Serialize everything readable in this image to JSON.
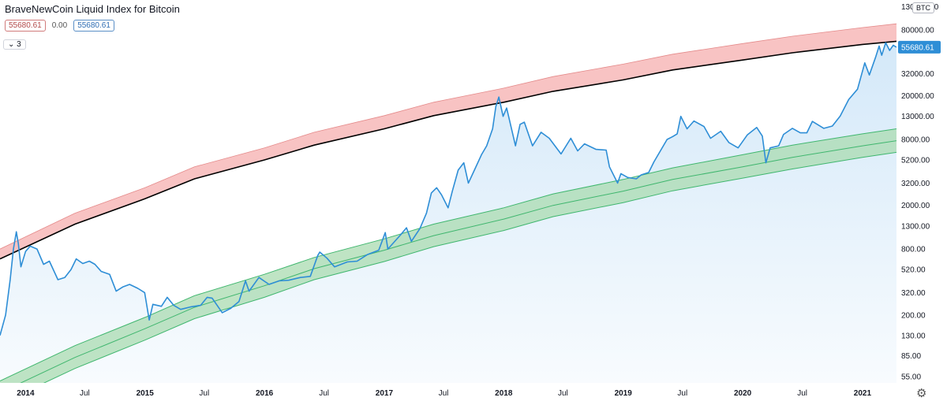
{
  "header": {
    "title": "BraveNewCoin Liquid Index for Bitcoin",
    "val_a": "55680.61",
    "val_b": "0.00",
    "val_c": "55680.61",
    "collapse_label": "3"
  },
  "currency_badge": "BTC",
  "last_price_label": "55680.61",
  "settings_icon": "gear-icon",
  "colors": {
    "price_line": "#2e8ed6",
    "price_fill_top": "#cfe6f8",
    "red_band": "#f7b9b9",
    "red_band_edge": "#e48a8a",
    "green_band": "#a9dbb0",
    "green_band_edge": "#3fb66e",
    "fair_line": "#000000"
  },
  "chart_data": {
    "type": "line",
    "title": "BraveNewCoin Liquid Index for Bitcoin",
    "y_scale": "log",
    "ylim": [
      48,
      150000
    ],
    "x_range": [
      "2013-10-15",
      "2021-04-15"
    ],
    "y_ticks": [
      130000,
      80000,
      52000,
      32000,
      20000,
      13000,
      8000,
      5200,
      3200,
      2000,
      1300,
      800,
      520,
      320,
      200,
      130,
      85,
      55
    ],
    "y_tick_labels": [
      "130000.00",
      "80000.00",
      "52000.00",
      "32000.00",
      "20000.00",
      "13000.00",
      "8000.00",
      "5200.00",
      "3200.00",
      "2000.00",
      "1300.00",
      "800.00",
      "520.00",
      "320.00",
      "200.00",
      "130.00",
      "85.00",
      "55.00"
    ],
    "x_ticks": [
      {
        "date": "2014-01-01",
        "label": "2014",
        "bold": true
      },
      {
        "date": "2014-07-01",
        "label": "Jul",
        "bold": false
      },
      {
        "date": "2015-01-01",
        "label": "2015",
        "bold": true
      },
      {
        "date": "2015-07-01",
        "label": "Jul",
        "bold": false
      },
      {
        "date": "2016-01-01",
        "label": "2016",
        "bold": true
      },
      {
        "date": "2016-07-01",
        "label": "Jul",
        "bold": false
      },
      {
        "date": "2017-01-01",
        "label": "2017",
        "bold": true
      },
      {
        "date": "2017-07-01",
        "label": "Jul",
        "bold": false
      },
      {
        "date": "2018-01-01",
        "label": "2018",
        "bold": true
      },
      {
        "date": "2018-07-01",
        "label": "Jul",
        "bold": false
      },
      {
        "date": "2019-01-01",
        "label": "2019",
        "bold": true
      },
      {
        "date": "2019-07-01",
        "label": "Jul",
        "bold": false
      },
      {
        "date": "2020-01-01",
        "label": "2020",
        "bold": true
      },
      {
        "date": "2020-07-01",
        "label": "Jul",
        "bold": false
      },
      {
        "date": "2021-01-01",
        "label": "2021",
        "bold": true
      }
    ],
    "bands": {
      "dates": [
        "2013-10-15",
        "2014-06-01",
        "2015-01-01",
        "2015-06-01",
        "2016-01-01",
        "2016-06-01",
        "2017-01-01",
        "2017-06-01",
        "2018-01-01",
        "2018-06-01",
        "2019-01-01",
        "2019-06-01",
        "2020-01-01",
        "2020-06-01",
        "2021-01-01",
        "2021-04-15"
      ],
      "red_upper": [
        800,
        1700,
        2900,
        4500,
        6700,
        9300,
        13200,
        17500,
        23500,
        30000,
        39000,
        48000,
        60000,
        70000,
        84000,
        91000
      ],
      "fair_value": [
        650,
        1350,
        2300,
        3500,
        5200,
        7100,
        10000,
        13200,
        17500,
        22000,
        28000,
        34500,
        42500,
        49500,
        59000,
        63000
      ],
      "green_upper": [
        50,
        105,
        190,
        300,
        470,
        670,
        990,
        1350,
        1900,
        2550,
        3450,
        4400,
        5800,
        7100,
        9000,
        10000
      ],
      "green_mid": [
        39,
        82,
        150,
        235,
        370,
        530,
        780,
        1060,
        1500,
        2000,
        2700,
        3450,
        4500,
        5500,
        7000,
        7800
      ],
      "green_lower": [
        31,
        65,
        118,
        185,
        290,
        420,
        615,
        840,
        1180,
        1580,
        2120,
        2720,
        3550,
        4300,
        5500,
        6100
      ]
    },
    "series": [
      {
        "name": "BTC",
        "points": [
          [
            "2013-10-15",
            130
          ],
          [
            "2013-11-01",
            200
          ],
          [
            "2013-11-15",
            420
          ],
          [
            "2013-11-25",
            800
          ],
          [
            "2013-12-04",
            1150
          ],
          [
            "2013-12-10",
            900
          ],
          [
            "2013-12-18",
            550
          ],
          [
            "2014-01-01",
            760
          ],
          [
            "2014-01-15",
            850
          ],
          [
            "2014-02-05",
            800
          ],
          [
            "2014-02-25",
            580
          ],
          [
            "2014-03-15",
            620
          ],
          [
            "2014-04-10",
            420
          ],
          [
            "2014-05-01",
            440
          ],
          [
            "2014-05-20",
            520
          ],
          [
            "2014-06-05",
            650
          ],
          [
            "2014-06-25",
            590
          ],
          [
            "2014-07-15",
            620
          ],
          [
            "2014-08-01",
            580
          ],
          [
            "2014-08-20",
            500
          ],
          [
            "2014-09-15",
            470
          ],
          [
            "2014-10-05",
            330
          ],
          [
            "2014-10-25",
            360
          ],
          [
            "2014-11-15",
            380
          ],
          [
            "2014-12-10",
            350
          ],
          [
            "2014-12-31",
            320
          ],
          [
            "2015-01-14",
            180
          ],
          [
            "2015-01-25",
            250
          ],
          [
            "2015-02-20",
            240
          ],
          [
            "2015-03-10",
            290
          ],
          [
            "2015-03-30",
            245
          ],
          [
            "2015-04-20",
            225
          ],
          [
            "2015-05-20",
            237
          ],
          [
            "2015-06-20",
            245
          ],
          [
            "2015-07-10",
            290
          ],
          [
            "2015-07-25",
            285
          ],
          [
            "2015-08-25",
            210
          ],
          [
            "2015-09-20",
            230
          ],
          [
            "2015-10-15",
            265
          ],
          [
            "2015-11-04",
            410
          ],
          [
            "2015-11-15",
            330
          ],
          [
            "2015-12-15",
            440
          ],
          [
            "2016-01-15",
            380
          ],
          [
            "2016-02-15",
            410
          ],
          [
            "2016-03-15",
            415
          ],
          [
            "2016-04-20",
            440
          ],
          [
            "2016-05-20",
            450
          ],
          [
            "2016-06-12",
            700
          ],
          [
            "2016-06-18",
            750
          ],
          [
            "2016-07-10",
            660
          ],
          [
            "2016-08-02",
            550
          ],
          [
            "2016-09-10",
            610
          ],
          [
            "2016-10-10",
            620
          ],
          [
            "2016-11-10",
            710
          ],
          [
            "2016-12-15",
            780
          ],
          [
            "2017-01-04",
            1130
          ],
          [
            "2017-01-12",
            800
          ],
          [
            "2017-02-20",
            1080
          ],
          [
            "2017-03-10",
            1250
          ],
          [
            "2017-03-25",
            940
          ],
          [
            "2017-04-20",
            1230
          ],
          [
            "2017-05-10",
            1700
          ],
          [
            "2017-05-25",
            2600
          ],
          [
            "2017-06-10",
            2900
          ],
          [
            "2017-06-25",
            2500
          ],
          [
            "2017-07-15",
            1900
          ],
          [
            "2017-07-28",
            2700
          ],
          [
            "2017-08-15",
            4200
          ],
          [
            "2017-09-01",
            4900
          ],
          [
            "2017-09-15",
            3200
          ],
          [
            "2017-10-05",
            4300
          ],
          [
            "2017-10-25",
            5800
          ],
          [
            "2017-11-10",
            7000
          ],
          [
            "2017-11-28",
            10000
          ],
          [
            "2017-12-08",
            16000
          ],
          [
            "2017-12-17",
            19500
          ],
          [
            "2017-12-30",
            13000
          ],
          [
            "2018-01-10",
            15500
          ],
          [
            "2018-01-20",
            11500
          ],
          [
            "2018-02-06",
            7000
          ],
          [
            "2018-02-20",
            11000
          ],
          [
            "2018-03-05",
            11500
          ],
          [
            "2018-03-30",
            7000
          ],
          [
            "2018-04-25",
            9300
          ],
          [
            "2018-05-20",
            8200
          ],
          [
            "2018-06-25",
            5900
          ],
          [
            "2018-07-25",
            8200
          ],
          [
            "2018-08-15",
            6300
          ],
          [
            "2018-09-05",
            7300
          ],
          [
            "2018-10-10",
            6500
          ],
          [
            "2018-11-10",
            6400
          ],
          [
            "2018-11-20",
            4500
          ],
          [
            "2018-12-15",
            3200
          ],
          [
            "2018-12-25",
            3900
          ],
          [
            "2019-01-15",
            3600
          ],
          [
            "2019-02-10",
            3500
          ],
          [
            "2019-02-25",
            3800
          ],
          [
            "2019-03-20",
            4000
          ],
          [
            "2019-04-05",
            5000
          ],
          [
            "2019-05-15",
            8000
          ],
          [
            "2019-06-01",
            8500
          ],
          [
            "2019-06-15",
            9000
          ],
          [
            "2019-06-26",
            13000
          ],
          [
            "2019-07-15",
            10000
          ],
          [
            "2019-08-05",
            11800
          ],
          [
            "2019-09-05",
            10500
          ],
          [
            "2019-09-25",
            8200
          ],
          [
            "2019-10-26",
            9500
          ],
          [
            "2019-11-20",
            7500
          ],
          [
            "2019-12-18",
            6700
          ],
          [
            "2020-01-15",
            8800
          ],
          [
            "2020-02-13",
            10300
          ],
          [
            "2020-03-01",
            8600
          ],
          [
            "2020-03-12",
            4900
          ],
          [
            "2020-03-25",
            6700
          ],
          [
            "2020-04-20",
            7000
          ],
          [
            "2020-05-05",
            8900
          ],
          [
            "2020-06-01",
            10100
          ],
          [
            "2020-06-25",
            9200
          ],
          [
            "2020-07-15",
            9200
          ],
          [
            "2020-08-01",
            11700
          ],
          [
            "2020-09-05",
            10100
          ],
          [
            "2020-10-01",
            10600
          ],
          [
            "2020-10-25",
            13100
          ],
          [
            "2020-11-20",
            18500
          ],
          [
            "2020-12-17",
            23000
          ],
          [
            "2021-01-08",
            40000
          ],
          [
            "2021-01-22",
            31000
          ],
          [
            "2021-02-10",
            45000
          ],
          [
            "2021-02-21",
            57000
          ],
          [
            "2021-03-01",
            47000
          ],
          [
            "2021-03-13",
            61000
          ],
          [
            "2021-03-25",
            52000
          ],
          [
            "2021-04-05",
            58000
          ],
          [
            "2021-04-15",
            55680.61
          ]
        ]
      }
    ]
  }
}
